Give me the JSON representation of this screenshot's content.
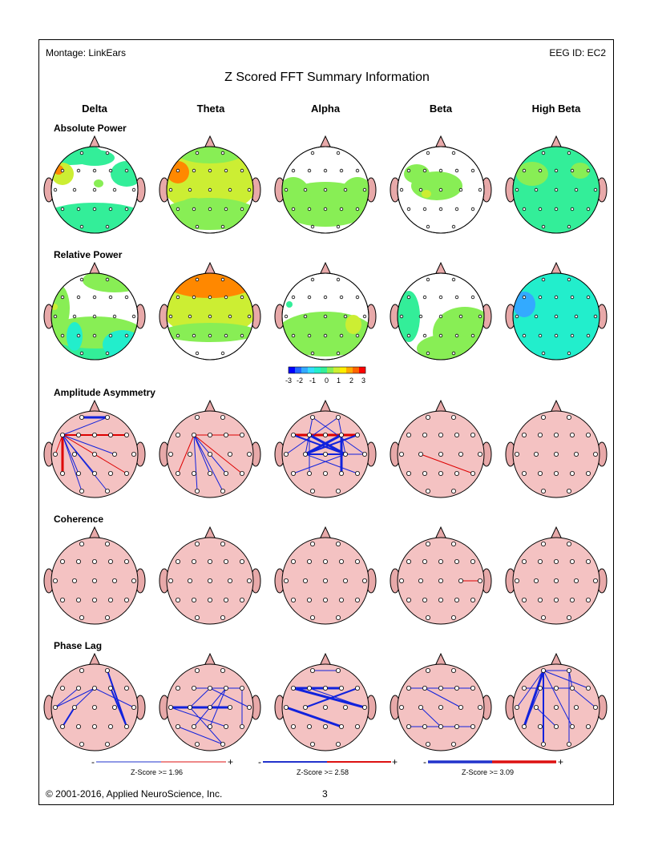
{
  "header": {
    "montage": "Montage:  LinkEars",
    "eeg_id": "EEG ID:  EC2"
  },
  "title": "Z Scored FFT Summary Information",
  "bands": [
    "Delta",
    "Theta",
    "Alpha",
    "Beta",
    "High Beta"
  ],
  "rows": [
    "Absolute Power",
    "Relative Power",
    "Amplitude Asymmetry",
    "Coherence",
    "Phase Lag"
  ],
  "color_scale": {
    "ticks": [
      "-3",
      "-2",
      "-1",
      "0",
      "1",
      "2",
      "3"
    ]
  },
  "legends": [
    {
      "minus": "-",
      "plus": "+",
      "label": "Z-Score >= 1.96"
    },
    {
      "minus": "-",
      "plus": "+",
      "label": "Z-Score >= 2.58"
    },
    {
      "minus": "-",
      "plus": "+",
      "label": "Z-Score >= 3.09"
    }
  ],
  "footer": {
    "copyright": "© 2001-2016, Applied NeuroScience, Inc.",
    "page": "3"
  },
  "colors": {
    "white": "#ffffff",
    "green": "#88ee55",
    "aqua": "#33ee99",
    "cyan": "#22eecc",
    "yellow": "#ccee33",
    "orange": "#ff8800",
    "head_pink": "#f4c2c2",
    "pos_line": "#dd0000",
    "neg_line": "#1122dd"
  },
  "maps": [
    [
      "mix_wg",
      "yellow_mix",
      "white_green_low",
      "white_green_patch",
      "aqua_full"
    ],
    [
      "green_white_mix",
      "orange_top_yellow",
      "white_top_green_low",
      "white_green_sweep",
      "cyan_full"
    ]
  ]
}
